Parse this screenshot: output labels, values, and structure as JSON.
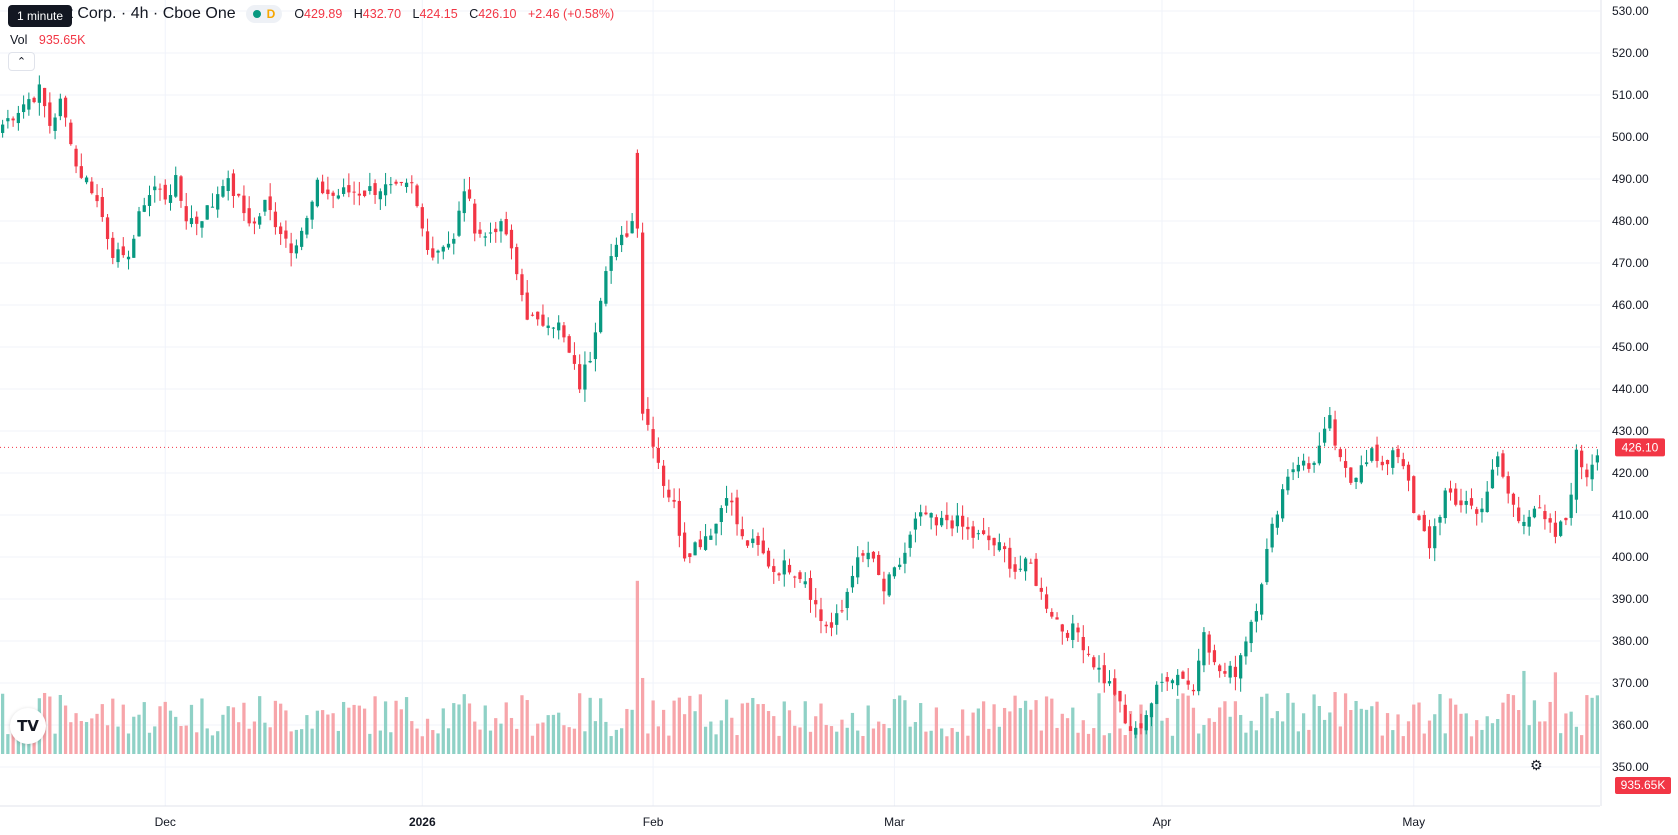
{
  "legend": {
    "symbol": "Microsoft Corp. · 4h · Cboe One",
    "timeframe_tooltip": "1 minute",
    "status_badge": "D",
    "open_label": "O",
    "open": "429.89",
    "high_label": "H",
    "high": "432.70",
    "low_label": "L",
    "low": "424.15",
    "close_label": "C",
    "close": "426.10",
    "change": "+2.46 (+0.58%)",
    "volume_label": "Vol",
    "volume": "935.65K"
  },
  "price_tag": "426.10",
  "volume_tag": "935.65K",
  "icons": {
    "logo": "tradingview-logo",
    "settings": "gear-icon",
    "collapse": "chevron-up-icon"
  },
  "colors": {
    "up": "#089981",
    "down": "#f23645",
    "up_volume": "#8fd1c6",
    "down_volume": "#f7a5aa",
    "grid": "#f0f3fa",
    "axis_text": "#131722"
  },
  "chart_data": {
    "type": "candlestick",
    "ylim": [
      345,
      530
    ],
    "y_ticks": [
      530,
      520,
      510,
      500,
      490,
      480,
      470,
      460,
      450,
      440,
      430,
      420,
      410,
      400,
      390,
      380,
      370,
      360,
      350
    ],
    "y_tick_labels": [
      "530.00",
      "520.00",
      "510.00",
      "500.00",
      "490.00",
      "480.00",
      "470.00",
      "460.00",
      "450.00",
      "440.00",
      "430.00",
      "420.00",
      "410.00",
      "400.00",
      "390.00",
      "380.00",
      "370.00",
      "360.00",
      "350.00"
    ],
    "x_tick_labels": [
      {
        "label": "Dec",
        "index": 31,
        "bold": false
      },
      {
        "label": "2026",
        "index": 80,
        "bold": true
      },
      {
        "label": "Feb",
        "index": 124,
        "bold": false
      },
      {
        "label": "Mar",
        "index": 170,
        "bold": false
      },
      {
        "label": "Apr",
        "index": 221,
        "bold": false
      },
      {
        "label": "May",
        "index": 269,
        "bold": false
      }
    ],
    "last_price": 426.1,
    "volume_max": 2500000,
    "anchors": [
      [
        0,
        503
      ],
      [
        4,
        508
      ],
      [
        7,
        511
      ],
      [
        9,
        503
      ],
      [
        11,
        508
      ],
      [
        13,
        500
      ],
      [
        14,
        493
      ],
      [
        17,
        488
      ],
      [
        19,
        481
      ],
      [
        21,
        473
      ],
      [
        23,
        470
      ],
      [
        25,
        476
      ],
      [
        27,
        485
      ],
      [
        29,
        488
      ],
      [
        31,
        486
      ],
      [
        33,
        489
      ],
      [
        35,
        481
      ],
      [
        37,
        480
      ],
      [
        40,
        484
      ],
      [
        42,
        490
      ],
      [
        44,
        487
      ],
      [
        46,
        482
      ],
      [
        48,
        479
      ],
      [
        50,
        484
      ],
      [
        52,
        480
      ],
      [
        55,
        474
      ],
      [
        58,
        480
      ],
      [
        60,
        488
      ],
      [
        63,
        486
      ],
      [
        66,
        487
      ],
      [
        69,
        487
      ],
      [
        72,
        488
      ],
      [
        75,
        487
      ],
      [
        78,
        488
      ],
      [
        80,
        478
      ],
      [
        82,
        472
      ],
      [
        84,
        475
      ],
      [
        86,
        475
      ],
      [
        88,
        488
      ],
      [
        90,
        479
      ],
      [
        92,
        476
      ],
      [
        94,
        479
      ],
      [
        96,
        477
      ],
      [
        98,
        467
      ],
      [
        100,
        458
      ],
      [
        102,
        455
      ],
      [
        104,
        457
      ],
      [
        106,
        455
      ],
      [
        108,
        448
      ],
      [
        110,
        441
      ],
      [
        112,
        448
      ],
      [
        115,
        470
      ],
      [
        117,
        473
      ],
      [
        120,
        480
      ],
      [
        121,
        480
      ],
      [
        122,
        435
      ],
      [
        124,
        428
      ],
      [
        126,
        418
      ],
      [
        128,
        412
      ],
      [
        130,
        401
      ],
      [
        133,
        404
      ],
      [
        136,
        408
      ],
      [
        138,
        416
      ],
      [
        141,
        404
      ],
      [
        144,
        402
      ],
      [
        147,
        397
      ],
      [
        150,
        398
      ],
      [
        153,
        395
      ],
      [
        156,
        385
      ],
      [
        158,
        383
      ],
      [
        160,
        387
      ],
      [
        162,
        397
      ],
      [
        165,
        401
      ],
      [
        168,
        392
      ],
      [
        170,
        396
      ],
      [
        172,
        401
      ],
      [
        174,
        408
      ],
      [
        176,
        410
      ],
      [
        178,
        407
      ],
      [
        180,
        409
      ],
      [
        182,
        408
      ],
      [
        185,
        405
      ],
      [
        188,
        404
      ],
      [
        191,
        401
      ],
      [
        193,
        397
      ],
      [
        196,
        398
      ],
      [
        198,
        391
      ],
      [
        200,
        387
      ],
      [
        202,
        383
      ],
      [
        205,
        382
      ],
      [
        208,
        375
      ],
      [
        210,
        371
      ],
      [
        212,
        368
      ],
      [
        214,
        360
      ],
      [
        216,
        358
      ],
      [
        218,
        363
      ],
      [
        220,
        368
      ],
      [
        222,
        372
      ],
      [
        225,
        372
      ],
      [
        227,
        368
      ],
      [
        229,
        384
      ],
      [
        231,
        374
      ],
      [
        233,
        372
      ],
      [
        235,
        373
      ],
      [
        237,
        381
      ],
      [
        239,
        389
      ],
      [
        241,
        401
      ],
      [
        243,
        412
      ],
      [
        245,
        420
      ],
      [
        247,
        423
      ],
      [
        249,
        421
      ],
      [
        251,
        426
      ],
      [
        253,
        432
      ],
      [
        255,
        422
      ],
      [
        257,
        418
      ],
      [
        259,
        423
      ],
      [
        261,
        425
      ],
      [
        263,
        420
      ],
      [
        265,
        426
      ],
      [
        267,
        423
      ],
      [
        269,
        410
      ],
      [
        272,
        403
      ],
      [
        275,
        415
      ],
      [
        277,
        412
      ],
      [
        279,
        414
      ],
      [
        281,
        410
      ],
      [
        283,
        416
      ],
      [
        285,
        423
      ],
      [
        287,
        415
      ],
      [
        289,
        409
      ],
      [
        292,
        412
      ],
      [
        294,
        408
      ],
      [
        296,
        405
      ],
      [
        298,
        409
      ],
      [
        300,
        424
      ],
      [
        302,
        420
      ],
      [
        304,
        426
      ]
    ],
    "candle_count": 305,
    "volume_spikes": {
      "121": 2460000,
      "122": 1080000,
      "206": 480000,
      "254": 880000,
      "290": 1180000,
      "296": 1160000
    }
  }
}
